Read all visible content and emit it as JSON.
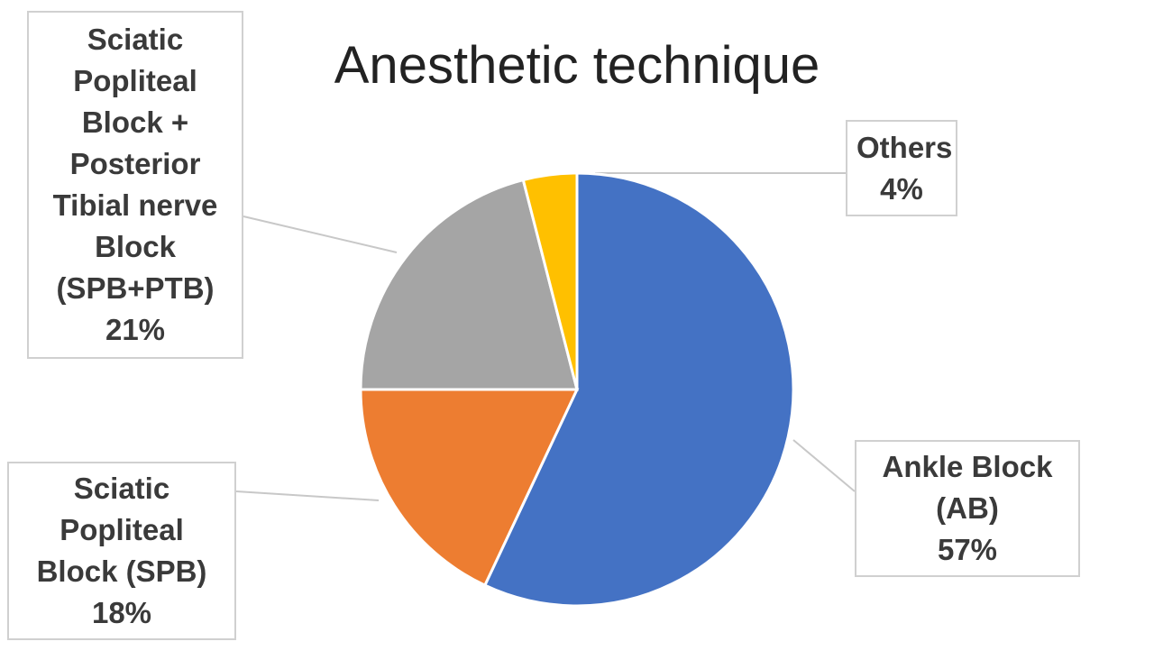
{
  "chart_data": {
    "type": "pie",
    "title": "Anesthetic technique",
    "categories": [
      "Ankle Block (AB)",
      "Sciatic Popliteal Block (SPB)",
      "Sciatic Popliteal Block + Posterior Tibial nerve Block (SPB+PTB)",
      "Others"
    ],
    "values": [
      57,
      18,
      21,
      4
    ],
    "value_labels": [
      "57%",
      "18%",
      "21%",
      "4%"
    ],
    "colors": [
      "#4472c4",
      "#ed7d31",
      "#a5a5a5",
      "#ffc000"
    ]
  }
}
